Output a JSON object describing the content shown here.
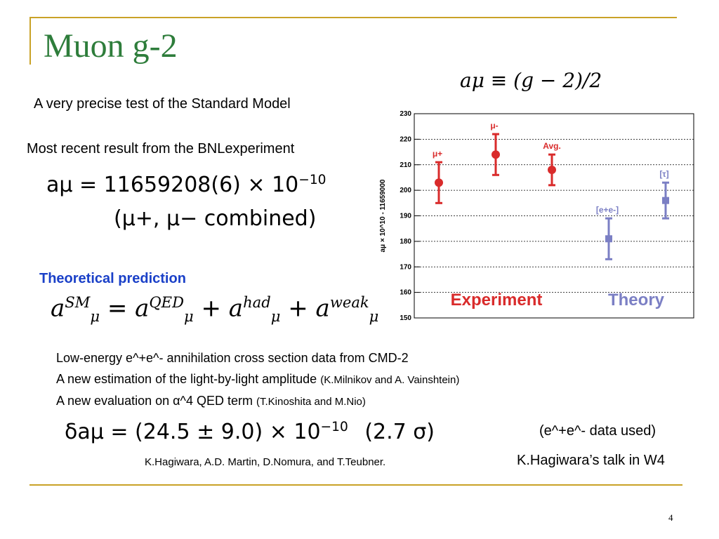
{
  "slide": {
    "title": "Muon g-2",
    "page_number": "4",
    "definition_formula": "aμ ≡ (g − 2)/2",
    "intro_text": "A very precise test of the Standard Model",
    "bnl_text": "Most recent result from the BNLexperiment",
    "result_value": "aμ = 11659208(6) × 10",
    "result_exponent": "−10",
    "result_note": "(μ+, μ− combined)",
    "theory_heading": "Theoretical prediction",
    "theory_formula": {
      "a": "a",
      "mu": "μ",
      "sm": "SM",
      "qed": "QED",
      "had": "had",
      "weak": "weak"
    },
    "bullets": [
      {
        "main": "Low-energy e^+e^- annihilation cross section data from CMD-2",
        "note": ""
      },
      {
        "main": "A new estimation of the light-by-light amplitude ",
        "note": "(K.Milnikov and A. Vainshtein)"
      },
      {
        "main": "A new evaluation on α^4  QED term ",
        "note": "(T.Kinoshita and M.Nio)"
      }
    ],
    "delta_formula": "δaμ = (24.5 ± 9.0) × 10",
    "delta_exponent": "−10",
    "delta_sigma": "(2.7 σ)",
    "data_used_note": "(e^+e^- data used)",
    "authors_note": "K.Hagiwara, A.D. Martin, D.Nomura, and T.Teubner.",
    "talk_note": "K.Hagiwara’s  talk in W4"
  },
  "chart_data": {
    "type": "scatter",
    "ylabel": "aμ × 10^10 - 11659000",
    "ylim": [
      150,
      230
    ],
    "yticks": [
      150,
      160,
      170,
      180,
      190,
      200,
      210,
      220,
      230
    ],
    "grid": "horizontal dashed",
    "series": [
      {
        "name": "Experiment",
        "color": "#d92b2b",
        "marker": "circle",
        "points": [
          {
            "label": "μ+",
            "y": 203,
            "err": 8
          },
          {
            "label": "μ-",
            "y": 214,
            "err": 8
          },
          {
            "label": "Avg.",
            "y": 208,
            "err": 6
          }
        ]
      },
      {
        "name": "Theory",
        "color": "#7b7fc4",
        "marker": "square",
        "points": [
          {
            "label": "[e+e-]",
            "y": 181,
            "err": 8
          },
          {
            "label": "[τ]",
            "y": 196,
            "err": 7
          }
        ]
      }
    ]
  }
}
